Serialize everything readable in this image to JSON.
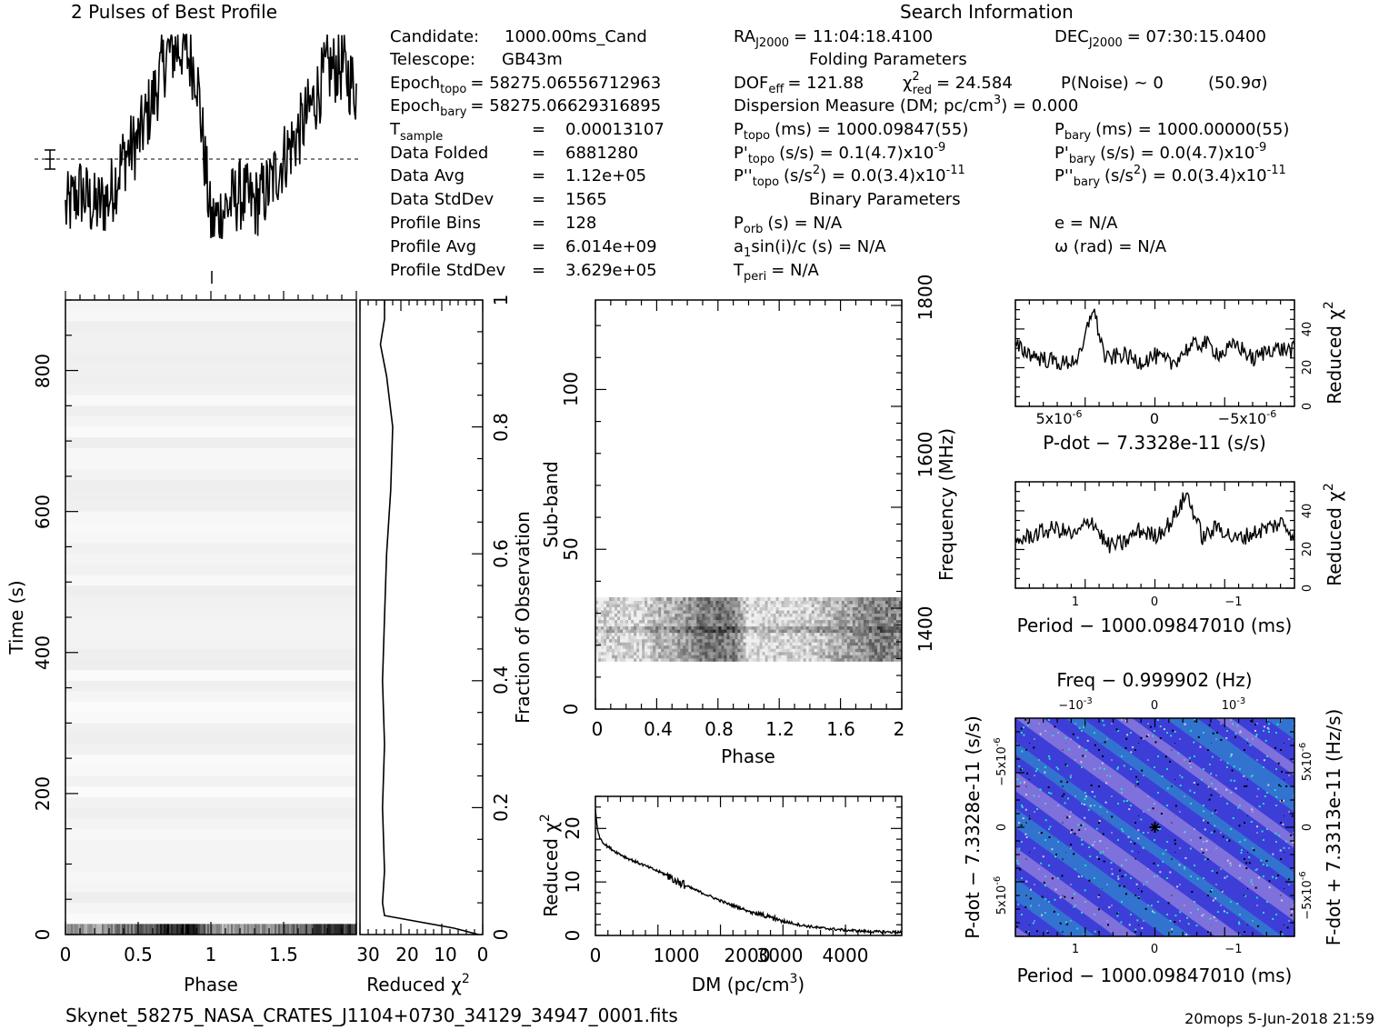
{
  "header": {
    "profile_title": "2 Pulses of Best Profile",
    "search_title": "Search Information",
    "folding_title": "Folding Parameters",
    "binary_title": "Binary Parameters"
  },
  "info": {
    "candidate": {
      "label": "Candidate:",
      "value": "1000.00ms_Cand"
    },
    "telescope": {
      "label": "Telescope:",
      "value": "GB43m"
    },
    "epoch_topo": {
      "label": "Epoch",
      "sub": "topo",
      "value": "= 58275.06556712963"
    },
    "epoch_bary": {
      "label": "Epoch",
      "sub": "bary",
      "value": "= 58275.06629316895"
    },
    "tsample": {
      "label": "T",
      "sub": "sample",
      "eq": "=",
      "value": "0.00013107"
    },
    "data_folded": {
      "label": "Data Folded",
      "eq": "=",
      "value": "6881280"
    },
    "data_avg": {
      "label": "Data Avg",
      "eq": "=",
      "value": "1.12e+05"
    },
    "data_stddev": {
      "label": "Data StdDev",
      "eq": "=",
      "value": "1565"
    },
    "profile_bins": {
      "label": "Profile Bins",
      "eq": "=",
      "value": "128"
    },
    "profile_avg": {
      "label": "Profile Avg",
      "eq": "=",
      "value": "6.014e+09"
    },
    "profile_stddev": {
      "label": "Profile StdDev",
      "eq": "=",
      "value": "3.629e+05"
    }
  },
  "search": {
    "ra_label": "RA",
    "ra_sub": "J2000",
    "ra_value": "= 11:04:18.4100",
    "dec_label": "DEC",
    "dec_sub": "J2000",
    "dec_value": "= 07:30:15.0400"
  },
  "folding": {
    "dof_label": "DOF",
    "dof_sub": "eff",
    "dof_value": "= 121.88",
    "chi_label": "χ",
    "chi_sup": "2",
    "chi_sub": "red",
    "chi_value": "= 24.584",
    "pnoise": "P(Noise) ~ 0",
    "sigma": "(50.9σ)",
    "dm_line_a": "Dispersion Measure (DM; pc/cm",
    "dm_line_sup": "3",
    "dm_line_b": ") = 0.000",
    "ptopo_label": "P",
    "ptopo_sub": "topo",
    "ptopo_value": "(ms) =  1000.09847(55)",
    "pbary_label": "P",
    "pbary_sub": "bary",
    "pbary_value": "(ms) =  1000.00000(55)",
    "pdtopo_label": "P'",
    "pdtopo_sub": "topo",
    "pdtopo_value": "(s/s) =  0.1(4.7)x10",
    "pdtopo_exp": "-9",
    "pdbary_label": "P'",
    "pdbary_sub": "bary",
    "pdbary_value": "(s/s) = 0.0(4.7)x10",
    "pdbary_exp": "-9",
    "pddtopo_label": "P''",
    "pddtopo_sub": "topo",
    "pddtopo_value_a": "(s/s",
    "pddtopo_value_sup": "2",
    "pddtopo_value_b": ") = 0.0(3.4)x10",
    "pddtopo_exp": "-11",
    "pddbary_label": "P''",
    "pddbary_sub": "bary",
    "pddbary_value_a": "(s/s",
    "pddbary_value_sup": "2",
    "pddbary_value_b": ") = 0.0(3.4)x10",
    "pddbary_exp": "-11"
  },
  "binary": {
    "porb_label": "P",
    "porb_sub": "orb",
    "porb_value": "(s) = N/A",
    "e_value": "e = N/A",
    "a1_label": "a",
    "a1_sub": "1",
    "a1_value": "sin(i)/c (s) = N/A",
    "omega_value": "ω (rad) = N/A",
    "tperi_label": "T",
    "tperi_sub": "peri",
    "tperi_value": "= N/A"
  },
  "footer": {
    "filename": "Skynet_58275_NASA_CRATES_J1104+0730_34129_34947_0001.fits",
    "stamp": "20mops  5-Jun-2018 21:59"
  },
  "colors": {
    "ink": "#000000",
    "ppdot_low": "#3a3ad6",
    "ppdot_mid": "#8f80d8",
    "ppdot_high": "#21d6c4"
  },
  "chart_data": [
    {
      "id": "profile",
      "type": "line",
      "x": [
        0.0,
        0.1,
        0.2,
        0.3,
        0.4,
        0.5,
        0.6,
        0.7,
        0.8,
        0.9,
        1.0,
        1.1,
        1.2,
        1.3,
        1.4,
        1.5,
        1.6,
        1.7,
        1.8,
        1.9,
        2.0
      ],
      "values": [
        -1.0,
        -0.4,
        -0.9,
        -0.6,
        0.6,
        1.1,
        2.3,
        3.7,
        3.9,
        3.2,
        -1.4,
        -0.9,
        -0.5,
        -0.8,
        -0.3,
        0.6,
        1.3,
        2.2,
        3.2,
        3.3,
        2.6
      ],
      "xlim": [
        0,
        2
      ],
      "grid": false
    },
    {
      "id": "time-phase",
      "type": "heatmap",
      "xlabel": "Phase",
      "ylabel": "Time (s)",
      "xlim": [
        0,
        2
      ],
      "ylim": [
        0,
        900
      ],
      "xticks": [
        "0",
        "0.5",
        "1",
        "1.5"
      ],
      "yticks": [
        "0",
        "200",
        "400",
        "600",
        "800"
      ],
      "bright_band_time_s": [
        0,
        15
      ]
    },
    {
      "id": "chi-vs-time",
      "type": "line",
      "xlabel": "Reduced χ",
      "xlabel_sup": "2",
      "ylabel": "Fraction of Observation",
      "xlim": [
        0,
        30
      ],
      "ylim": [
        0,
        1
      ],
      "xticks": [
        "30",
        "20",
        "10",
        "0"
      ],
      "yticks": [
        "0",
        "0.2",
        "0.4",
        "0.6",
        "0.8",
        "1"
      ],
      "fraction": [
        0.0,
        0.01,
        0.03,
        0.05,
        0.1,
        0.2,
        0.3,
        0.4,
        0.5,
        0.6,
        0.7,
        0.8,
        0.88,
        0.93,
        0.97,
        1.0
      ],
      "values": [
        1.0,
        7.0,
        24.0,
        24.5,
        24.0,
        24.5,
        24.0,
        24.5,
        24.0,
        23.5,
        22.5,
        22.0,
        23.5,
        25.0,
        24.0,
        24.0
      ]
    },
    {
      "id": "subband-phase",
      "type": "heatmap",
      "xlabel": "Phase",
      "ylabel": "Sub-band",
      "y2label": "Frequency (MHz)",
      "xlim": [
        0,
        2
      ],
      "ylim": [
        0,
        128
      ],
      "xticks": [
        "0",
        "0.4",
        "0.8",
        "1.2",
        "1.6",
        "2"
      ],
      "yticks": [
        "0",
        "50",
        "100"
      ],
      "y2ticks": [
        "1400",
        "1600",
        "1800"
      ],
      "active_subbands": [
        15,
        35
      ]
    },
    {
      "id": "chi-vs-dm",
      "type": "line",
      "xlabel": "DM (pc/cm",
      "xlabel_sup": "3",
      "xlabel_end": ")",
      "ylabel": "Reduced χ",
      "ylabel_sup": "2",
      "xlim": [
        0,
        4900
      ],
      "ylim": [
        0,
        26
      ],
      "xticks": [
        "0",
        "1000",
        "2000",
        "3000",
        "4000"
      ],
      "yticks": [
        "0",
        "10",
        "20"
      ],
      "x": [
        0,
        20,
        60,
        150,
        300,
        500,
        800,
        1000,
        1200,
        1300,
        1500,
        1800,
        2100,
        2400,
        2700,
        3000,
        3300,
        3600,
        4000,
        4400,
        4900
      ],
      "values": [
        23.5,
        21.0,
        18.5,
        17.0,
        15.8,
        14.5,
        13.0,
        12.0,
        11.0,
        10.2,
        9.0,
        7.5,
        6.0,
        4.8,
        3.7,
        2.7,
        1.9,
        1.4,
        1.0,
        0.7,
        0.6
      ]
    },
    {
      "id": "chi-vs-pdot",
      "type": "line",
      "xlabel": "P-dot − 7.3328e-11 (s/s)",
      "ylabel": "Reduced χ",
      "ylabel_sup": "2",
      "xlim": [
        8.5e-06,
        -8.5e-06
      ],
      "ylim": [
        0,
        55
      ],
      "xticks": [
        "5x10",
        "0",
        "−5x10"
      ],
      "xtick_exp": "-6",
      "yticks": [
        "0",
        "20",
        "40"
      ],
      "x": [
        8.5e-06,
        7e-06,
        5.5e-06,
        4.5e-06,
        3.8e-06,
        3e-06,
        2e-06,
        1e-06,
        0,
        -1e-06,
        -2e-06,
        -3e-06,
        -4e-06,
        -5e-06,
        -6e-06,
        -7e-06,
        -8.5e-06
      ],
      "values": [
        31,
        25,
        22,
        26,
        52,
        24,
        27,
        23,
        26,
        22,
        30,
        33,
        27,
        32,
        24,
        30,
        29
      ]
    },
    {
      "id": "chi-vs-period",
      "type": "line",
      "xlabel": "Period − 1000.09847010 (ms)",
      "ylabel": "Reduced χ",
      "ylabel_sup": "2",
      "xlim": [
        1.75,
        -1.75
      ],
      "ylim": [
        0,
        55
      ],
      "xticks": [
        "1",
        "0",
        "−1"
      ],
      "yticks": [
        "0",
        "20",
        "40"
      ],
      "x": [
        1.75,
        1.5,
        1.25,
        1.0,
        0.8,
        0.6,
        0.4,
        0.2,
        0.0,
        -0.2,
        -0.4,
        -0.6,
        -0.8,
        -1.0,
        -1.2,
        -1.4,
        -1.6,
        -1.75
      ],
      "values": [
        24,
        28,
        31,
        27,
        36,
        22,
        23,
        30,
        27,
        34,
        49,
        26,
        32,
        25,
        28,
        31,
        34,
        27
      ]
    },
    {
      "id": "ppdot-plane",
      "type": "heatmap",
      "title": "Freq − 0.999902 (Hz)",
      "xlabel": "Period − 1000.09847010 (ms)",
      "ylabel": "P-dot − 7.3328e-11 (s/s)",
      "y2label": "F-dot + 7.3313e-11 (Hz/s)",
      "xlim": [
        1.75,
        -1.75
      ],
      "ylim": [
        8.5e-06,
        -8.5e-06
      ],
      "xticks": [
        "1",
        "0",
        "−1"
      ],
      "x2ticks": [
        "−10",
        "0",
        "10"
      ],
      "x2tick_exp": "-3",
      "yticks": [
        "−5x10",
        "0",
        "5x10"
      ],
      "ytick_exp": "-6",
      "y2ticks": [
        "5x10",
        "0",
        "−5x10"
      ],
      "y2tick_exp": "-6",
      "best": {
        "x": 0,
        "y": 0
      }
    }
  ]
}
